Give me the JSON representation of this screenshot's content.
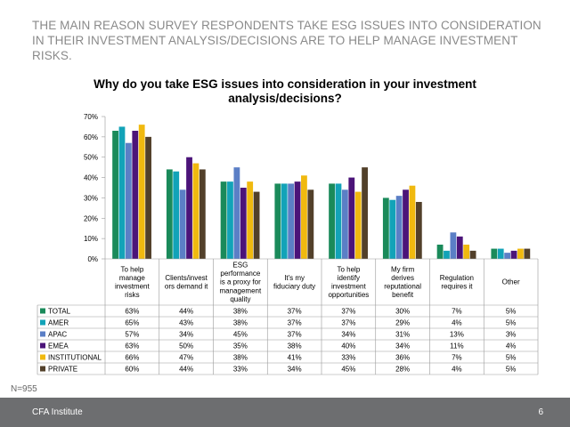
{
  "headline": "THE MAIN REASON SURVEY RESPONDENTS TAKE ESG ISSUES INTO CONSIDERATION IN THEIR INVESTMENT ANALYSIS/DECISIONS ARE TO HELP MANAGE INVESTMENT RISKS.",
  "footnote": "N=955",
  "footer": {
    "org": "CFA Institute",
    "page": "6"
  },
  "colors": {
    "TOTAL": "#1a8a5a",
    "AMER": "#12a3b8",
    "APAC": "#5b7fc6",
    "EMEA": "#4b1479",
    "INSTITUTIONAL": "#f0b90f",
    "PRIVATE": "#52402a"
  },
  "chart_data": {
    "type": "bar",
    "title": "Why do you take ESG issues into consideration in your investment analysis/decisions?",
    "ylim": [
      0,
      70
    ],
    "yticks": [
      "0%",
      "10%",
      "20%",
      "30%",
      "40%",
      "50%",
      "60%",
      "70%"
    ],
    "ytick_values": [
      0,
      10,
      20,
      30,
      40,
      50,
      60,
      70
    ],
    "categories": [
      [
        "To help",
        "manage",
        "investment",
        "risks"
      ],
      [
        "Clients/invest",
        "ors demand it"
      ],
      [
        "ESG",
        "performance",
        "is a proxy for",
        "management",
        "quality"
      ],
      [
        "It's my",
        "fiduciary duty"
      ],
      [
        "To help",
        "identify",
        "investment",
        "opportunities"
      ],
      [
        "My firm",
        "derives",
        "reputational",
        "benefit"
      ],
      [
        "Regulation",
        "requires it"
      ],
      [
        "Other"
      ]
    ],
    "series": [
      {
        "name": "TOTAL",
        "values": [
          63,
          44,
          38,
          37,
          37,
          30,
          7,
          5
        ]
      },
      {
        "name": "AMER",
        "values": [
          65,
          43,
          38,
          37,
          37,
          29,
          4,
          5
        ]
      },
      {
        "name": "APAC",
        "values": [
          57,
          34,
          45,
          37,
          34,
          31,
          13,
          3
        ]
      },
      {
        "name": "EMEA",
        "values": [
          63,
          50,
          35,
          38,
          40,
          34,
          11,
          4
        ]
      },
      {
        "name": "INSTITUTIONAL",
        "values": [
          66,
          47,
          38,
          41,
          33,
          36,
          7,
          5
        ]
      },
      {
        "name": "PRIVATE",
        "values": [
          60,
          44,
          33,
          34,
          45,
          28,
          4,
          5
        ]
      }
    ]
  }
}
